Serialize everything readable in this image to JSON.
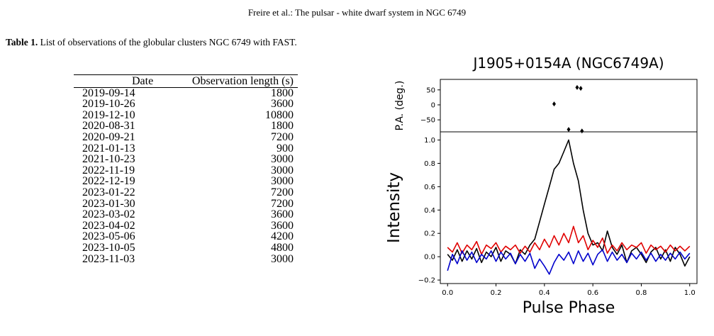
{
  "header": "Freire et al.: The pulsar - white dwarf system in NGC 6749",
  "table": {
    "label": "Table 1.",
    "caption": "List of observations of the globular clusters NGC 6749 with FAST.",
    "columns": [
      "Date",
      "Observation length (s)"
    ],
    "rows": [
      [
        "2019-09-14",
        "1800"
      ],
      [
        "2019-10-26",
        "3600"
      ],
      [
        "2019-12-10",
        "10800"
      ],
      [
        "2020-08-31",
        "1800"
      ],
      [
        "2020-09-21",
        "7200"
      ],
      [
        "2021-01-13",
        "900"
      ],
      [
        "2021-10-23",
        "3000"
      ],
      [
        "2022-11-19",
        "3000"
      ],
      [
        "2022-12-19",
        "3000"
      ],
      [
        "2023-01-22",
        "7200"
      ],
      [
        "2023-01-30",
        "7200"
      ],
      [
        "2023-03-02",
        "3600"
      ],
      [
        "2023-04-02",
        "3600"
      ],
      [
        "2023-05-06",
        "4200"
      ],
      [
        "2023-10-05",
        "4800"
      ],
      [
        "2023-11-03",
        "3000"
      ]
    ]
  },
  "chart_data": {
    "type": "line",
    "title": "J1905+0154A (NGC6749A)",
    "xlabel": "Pulse Phase",
    "ylabel": "Intensity",
    "ylabel_top": "P.A. (deg.)",
    "xlim": [
      -0.03,
      1.03
    ],
    "ylim": [
      -0.23,
      1.07
    ],
    "pa_ylim": [
      -90,
      85
    ],
    "x_ticks": [
      "0.0",
      "0.2",
      "0.4",
      "0.6",
      "0.8",
      "1.0"
    ],
    "y_ticks": [
      "−0.2",
      "0.0",
      "0.2",
      "0.4",
      "0.6",
      "0.8",
      "1.0"
    ],
    "pa_ticks": [
      "50",
      "0",
      "−50"
    ],
    "pa_points": [
      [
        0.44,
        3
      ],
      [
        0.5,
        -82
      ],
      [
        0.535,
        58
      ],
      [
        0.55,
        55
      ],
      [
        0.555,
        -87
      ]
    ],
    "series": [
      {
        "color": "#000000",
        "points": [
          [
            0,
            0.02
          ],
          [
            0.02,
            -0.03
          ],
          [
            0.04,
            0.06
          ],
          [
            0.06,
            -0.04
          ],
          [
            0.08,
            0.05
          ],
          [
            0.1,
            -0.02
          ],
          [
            0.12,
            0.07
          ],
          [
            0.14,
            -0.05
          ],
          [
            0.16,
            0.04
          ],
          [
            0.18,
            0.0
          ],
          [
            0.2,
            0.08
          ],
          [
            0.22,
            -0.04
          ],
          [
            0.24,
            0.05
          ],
          [
            0.26,
            0.02
          ],
          [
            0.28,
            -0.06
          ],
          [
            0.3,
            0.06
          ],
          [
            0.32,
            0.02
          ],
          [
            0.34,
            0.1
          ],
          [
            0.36,
            0.15
          ],
          [
            0.38,
            0.3
          ],
          [
            0.4,
            0.45
          ],
          [
            0.42,
            0.6
          ],
          [
            0.44,
            0.75
          ],
          [
            0.46,
            0.8
          ],
          [
            0.48,
            0.9
          ],
          [
            0.5,
            1.0
          ],
          [
            0.52,
            0.8
          ],
          [
            0.54,
            0.65
          ],
          [
            0.56,
            0.4
          ],
          [
            0.58,
            0.2
          ],
          [
            0.6,
            0.1
          ],
          [
            0.62,
            0.12
          ],
          [
            0.64,
            0.05
          ],
          [
            0.66,
            0.22
          ],
          [
            0.68,
            0.08
          ],
          [
            0.7,
            0.02
          ],
          [
            0.72,
            0.1
          ],
          [
            0.74,
            -0.05
          ],
          [
            0.76,
            0.05
          ],
          [
            0.78,
            0.08
          ],
          [
            0.8,
            0.02
          ],
          [
            0.82,
            -0.05
          ],
          [
            0.84,
            0.04
          ],
          [
            0.86,
            0.08
          ],
          [
            0.88,
            -0.02
          ],
          [
            0.9,
            0.06
          ],
          [
            0.92,
            -0.04
          ],
          [
            0.94,
            0.08
          ],
          [
            0.96,
            0.02
          ],
          [
            0.98,
            -0.08
          ],
          [
            1.0,
            0.0
          ]
        ]
      },
      {
        "color": "#e00000",
        "points": [
          [
            0,
            0.08
          ],
          [
            0.02,
            0.04
          ],
          [
            0.04,
            0.12
          ],
          [
            0.06,
            0.03
          ],
          [
            0.08,
            0.1
          ],
          [
            0.1,
            0.06
          ],
          [
            0.12,
            0.13
          ],
          [
            0.14,
            0.02
          ],
          [
            0.16,
            0.1
          ],
          [
            0.18,
            0.07
          ],
          [
            0.2,
            0.12
          ],
          [
            0.22,
            0.04
          ],
          [
            0.24,
            0.09
          ],
          [
            0.26,
            0.06
          ],
          [
            0.28,
            0.1
          ],
          [
            0.3,
            0.03
          ],
          [
            0.32,
            0.09
          ],
          [
            0.34,
            0.04
          ],
          [
            0.36,
            0.12
          ],
          [
            0.38,
            0.06
          ],
          [
            0.4,
            0.15
          ],
          [
            0.42,
            0.08
          ],
          [
            0.44,
            0.18
          ],
          [
            0.46,
            0.1
          ],
          [
            0.48,
            0.2
          ],
          [
            0.5,
            0.12
          ],
          [
            0.52,
            0.26
          ],
          [
            0.54,
            0.12
          ],
          [
            0.56,
            0.18
          ],
          [
            0.58,
            0.06
          ],
          [
            0.6,
            0.14
          ],
          [
            0.62,
            0.08
          ],
          [
            0.64,
            0.16
          ],
          [
            0.66,
            0.03
          ],
          [
            0.68,
            0.1
          ],
          [
            0.7,
            0.05
          ],
          [
            0.72,
            0.12
          ],
          [
            0.74,
            0.06
          ],
          [
            0.76,
            0.1
          ],
          [
            0.78,
            0.08
          ],
          [
            0.8,
            0.12
          ],
          [
            0.82,
            0.03
          ],
          [
            0.84,
            0.1
          ],
          [
            0.86,
            0.06
          ],
          [
            0.88,
            0.09
          ],
          [
            0.9,
            0.04
          ],
          [
            0.92,
            0.1
          ],
          [
            0.94,
            0.05
          ],
          [
            0.96,
            0.09
          ],
          [
            0.98,
            0.05
          ],
          [
            1.0,
            0.09
          ]
        ]
      },
      {
        "color": "#0000cc",
        "points": [
          [
            0,
            -0.12
          ],
          [
            0.02,
            0.02
          ],
          [
            0.04,
            -0.06
          ],
          [
            0.06,
            0.05
          ],
          [
            0.08,
            -0.03
          ],
          [
            0.1,
            0.04
          ],
          [
            0.12,
            -0.05
          ],
          [
            0.14,
            0.02
          ],
          [
            0.16,
            -0.02
          ],
          [
            0.18,
            0.05
          ],
          [
            0.2,
            -0.04
          ],
          [
            0.22,
            0.04
          ],
          [
            0.24,
            -0.02
          ],
          [
            0.26,
            0.03
          ],
          [
            0.28,
            -0.06
          ],
          [
            0.3,
            0.02
          ],
          [
            0.32,
            -0.04
          ],
          [
            0.34,
            0.03
          ],
          [
            0.36,
            -0.1
          ],
          [
            0.38,
            -0.02
          ],
          [
            0.4,
            -0.08
          ],
          [
            0.42,
            -0.15
          ],
          [
            0.44,
            -0.05
          ],
          [
            0.46,
            0.02
          ],
          [
            0.48,
            -0.03
          ],
          [
            0.5,
            0.04
          ],
          [
            0.52,
            -0.06
          ],
          [
            0.54,
            0.05
          ],
          [
            0.56,
            -0.04
          ],
          [
            0.58,
            0.03
          ],
          [
            0.6,
            -0.07
          ],
          [
            0.62,
            0.02
          ],
          [
            0.64,
            0.06
          ],
          [
            0.66,
            -0.04
          ],
          [
            0.68,
            0.04
          ],
          [
            0.7,
            -0.03
          ],
          [
            0.72,
            0.02
          ],
          [
            0.74,
            -0.05
          ],
          [
            0.76,
            0.03
          ],
          [
            0.78,
            -0.02
          ],
          [
            0.8,
            0.04
          ],
          [
            0.82,
            -0.03
          ],
          [
            0.84,
            0.03
          ],
          [
            0.86,
            -0.04
          ],
          [
            0.88,
            0.02
          ],
          [
            0.9,
            -0.03
          ],
          [
            0.92,
            0.03
          ],
          [
            0.94,
            -0.02
          ],
          [
            0.96,
            0.04
          ],
          [
            0.98,
            -0.02
          ],
          [
            1.0,
            0.03
          ]
        ]
      }
    ]
  }
}
